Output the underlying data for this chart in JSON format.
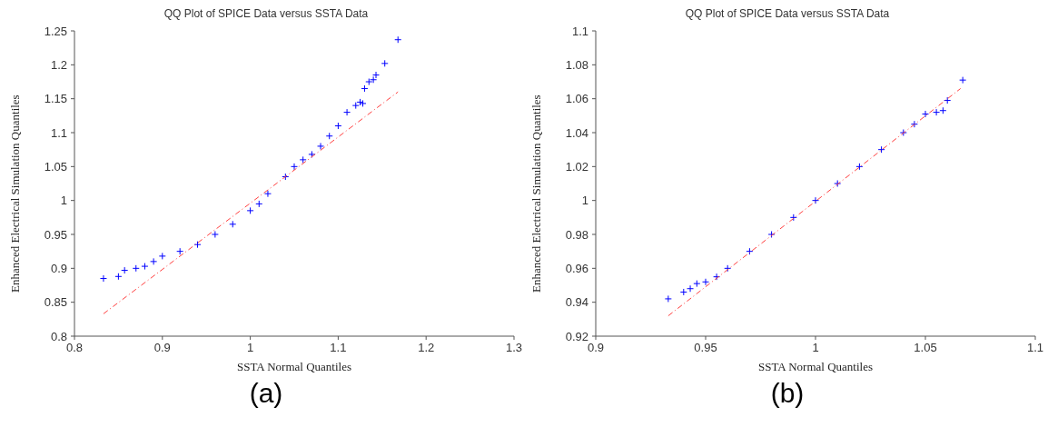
{
  "chart_data": [
    {
      "type": "scatter",
      "title": "QQ Plot of SPICE Data versus SSTA Data",
      "xlabel": "SSTA Normal Quantiles",
      "ylabel": "Enhanced Electrical Simulation Quantiles",
      "xlim": [
        0.8,
        1.3
      ],
      "xticks": [
        0.8,
        0.9,
        1,
        1.1,
        1.2,
        1.3
      ],
      "ylim": [
        0.8,
        1.25
      ],
      "yticks": [
        0.8,
        0.85,
        0.9,
        0.95,
        1,
        1.05,
        1.1,
        1.15,
        1.2,
        1.25
      ],
      "grid": false,
      "legend": false,
      "annotations": [
        "(a)"
      ],
      "series": [
        {
          "type": "scatter",
          "marker": "cross",
          "color": "#0000ff",
          "x": [
            0.833,
            0.85,
            0.857,
            0.87,
            0.88,
            0.89,
            0.9,
            0.92,
            0.94,
            0.96,
            0.98,
            1.0,
            1.01,
            1.02,
            1.04,
            1.05,
            1.06,
            1.07,
            1.08,
            1.09,
            1.1,
            1.11,
            1.12,
            1.125,
            1.128,
            1.13,
            1.135,
            1.14,
            1.143,
            1.153,
            1.168
          ],
          "values": [
            0.885,
            0.888,
            0.897,
            0.9,
            0.903,
            0.91,
            0.918,
            0.925,
            0.935,
            0.95,
            0.965,
            0.985,
            0.995,
            1.01,
            1.035,
            1.05,
            1.06,
            1.068,
            1.08,
            1.095,
            1.11,
            1.13,
            1.14,
            1.145,
            1.143,
            1.165,
            1.175,
            1.178,
            1.185,
            1.202,
            1.237
          ]
        },
        {
          "type": "line",
          "color": "#ff4040",
          "line_style": "dashed",
          "x": [
            0.833,
            1.168
          ],
          "values": [
            0.833,
            1.16
          ]
        }
      ]
    },
    {
      "type": "scatter",
      "title": "QQ Plot of SPICE Data versus SSTA Data",
      "xlabel": "SSTA Normal Quantiles",
      "ylabel": "Enhanced Electrical Simulation Quantiles",
      "xlim": [
        0.9,
        1.1
      ],
      "xticks": [
        0.9,
        0.95,
        1,
        1.05,
        1.1
      ],
      "ylim": [
        0.92,
        1.1
      ],
      "yticks": [
        0.92,
        0.94,
        0.96,
        0.98,
        1,
        1.02,
        1.04,
        1.06,
        1.08,
        1.1
      ],
      "grid": false,
      "legend": false,
      "annotations": [
        "(b)"
      ],
      "series": [
        {
          "type": "scatter",
          "marker": "cross",
          "color": "#0000ff",
          "x": [
            0.933,
            0.94,
            0.943,
            0.946,
            0.95,
            0.955,
            0.96,
            0.97,
            0.98,
            0.99,
            1.0,
            1.01,
            1.02,
            1.03,
            1.04,
            1.045,
            1.05,
            1.055,
            1.058,
            1.06,
            1.067
          ],
          "values": [
            0.942,
            0.946,
            0.948,
            0.951,
            0.952,
            0.955,
            0.96,
            0.97,
            0.98,
            0.99,
            1.0,
            1.01,
            1.02,
            1.03,
            1.04,
            1.045,
            1.051,
            1.052,
            1.053,
            1.059,
            1.071
          ]
        },
        {
          "type": "line",
          "color": "#ff4040",
          "line_style": "dashed",
          "x": [
            0.933,
            1.066
          ],
          "values": [
            0.932,
            1.066
          ]
        }
      ]
    }
  ]
}
